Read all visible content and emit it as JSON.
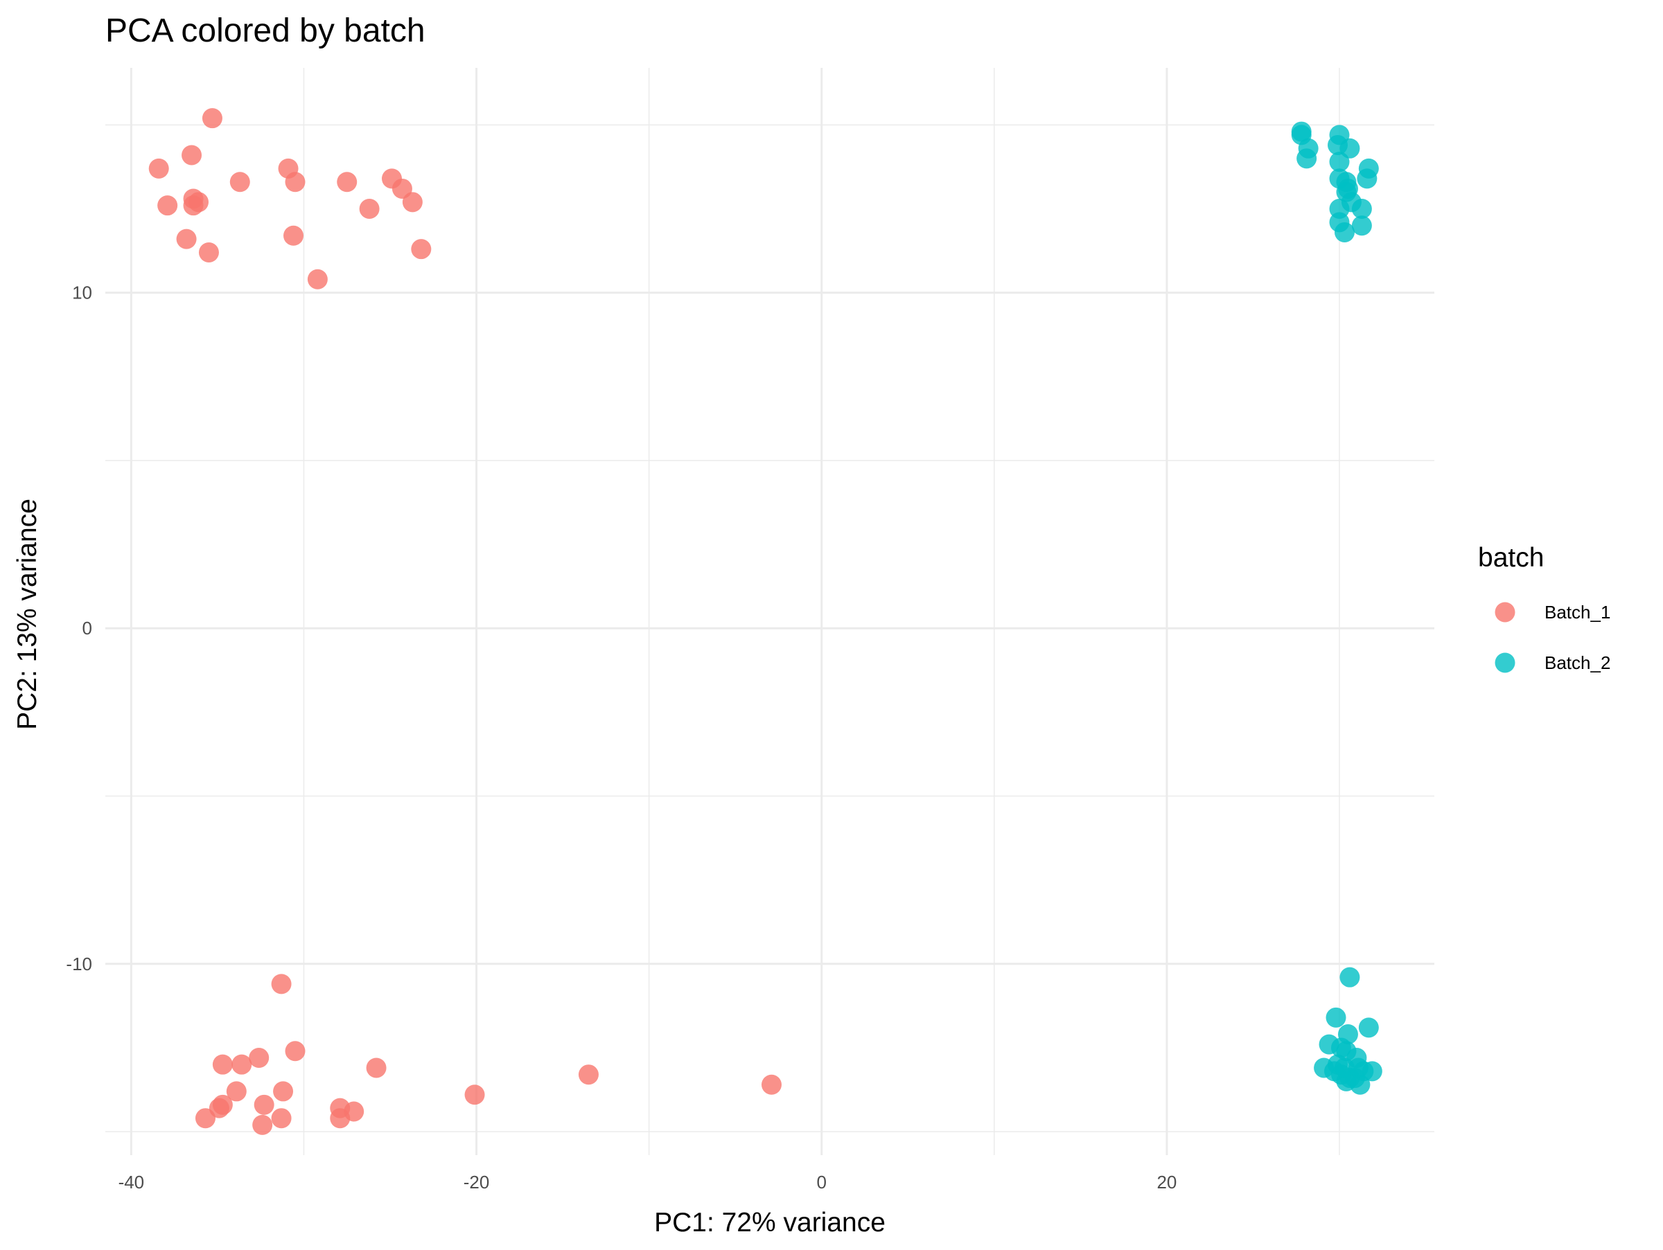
{
  "chart_data": {
    "type": "scatter",
    "title": "PCA colored by batch",
    "xlabel": "PC1: 72% variance",
    "ylabel": "PC2: 13% variance",
    "xlim": [
      -41.5,
      35.5
    ],
    "ylim": [
      -15.7,
      16.7
    ],
    "x_ticks": [
      -40,
      -20,
      0,
      20
    ],
    "x_tick_labels": [
      "-40",
      "-20",
      "0",
      "20"
    ],
    "x_minor_ticks": [
      -30,
      -10,
      10,
      30
    ],
    "y_ticks": [
      -10,
      0,
      10
    ],
    "y_tick_labels": [
      "-10",
      "0",
      "10"
    ],
    "y_minor_ticks": [
      -15,
      -5,
      5,
      15
    ],
    "grid": true,
    "legend": {
      "title": "batch",
      "position": "right"
    },
    "series": [
      {
        "name": "Batch_1",
        "color": "#F8766D",
        "points": [
          [
            -35.3,
            15.2
          ],
          [
            -36.5,
            14.1
          ],
          [
            -38.4,
            13.7
          ],
          [
            -37.9,
            12.6
          ],
          [
            -36.4,
            12.8
          ],
          [
            -36.1,
            12.7
          ],
          [
            -36.4,
            12.6
          ],
          [
            -33.7,
            13.3
          ],
          [
            -30.9,
            13.7
          ],
          [
            -30.5,
            13.3
          ],
          [
            -27.5,
            13.3
          ],
          [
            -24.9,
            13.4
          ],
          [
            -24.3,
            13.1
          ],
          [
            -23.7,
            12.7
          ],
          [
            -26.2,
            12.5
          ],
          [
            -30.6,
            11.7
          ],
          [
            -36.8,
            11.6
          ],
          [
            -35.5,
            11.2
          ],
          [
            -23.2,
            11.3
          ],
          [
            -29.2,
            10.4
          ],
          [
            -31.3,
            -10.6
          ],
          [
            -32.6,
            -12.8
          ],
          [
            -33.6,
            -13.0
          ],
          [
            -34.7,
            -13.0
          ],
          [
            -30.5,
            -12.6
          ],
          [
            -25.8,
            -13.1
          ],
          [
            -13.5,
            -13.3
          ],
          [
            -33.9,
            -13.8
          ],
          [
            -31.2,
            -13.8
          ],
          [
            -34.7,
            -14.2
          ],
          [
            -34.9,
            -14.3
          ],
          [
            -32.3,
            -14.2
          ],
          [
            -27.9,
            -14.3
          ],
          [
            -27.1,
            -14.4
          ],
          [
            -35.7,
            -14.6
          ],
          [
            -31.3,
            -14.6
          ],
          [
            -27.9,
            -14.6
          ],
          [
            -32.4,
            -14.8
          ],
          [
            -20.1,
            -13.9
          ],
          [
            -2.9,
            -13.6
          ]
        ]
      },
      {
        "name": "Batch_2",
        "color": "#00BFC4",
        "points": [
          [
            27.8,
            14.8
          ],
          [
            27.8,
            14.7
          ],
          [
            28.2,
            14.3
          ],
          [
            28.1,
            14.0
          ],
          [
            30.0,
            14.7
          ],
          [
            29.9,
            14.4
          ],
          [
            30.6,
            14.3
          ],
          [
            30.0,
            13.9
          ],
          [
            30.0,
            13.4
          ],
          [
            30.4,
            13.3
          ],
          [
            30.5,
            13.1
          ],
          [
            30.4,
            13.0
          ],
          [
            31.7,
            13.7
          ],
          [
            31.6,
            13.4
          ],
          [
            30.7,
            12.7
          ],
          [
            31.3,
            12.5
          ],
          [
            30.0,
            12.5
          ],
          [
            30.0,
            12.1
          ],
          [
            31.3,
            12.0
          ],
          [
            30.3,
            11.8
          ],
          [
            30.6,
            -10.4
          ],
          [
            29.8,
            -11.6
          ],
          [
            31.7,
            -11.9
          ],
          [
            30.5,
            -12.1
          ],
          [
            29.4,
            -12.4
          ],
          [
            30.1,
            -12.5
          ],
          [
            30.4,
            -12.6
          ],
          [
            31.0,
            -12.8
          ],
          [
            29.1,
            -13.1
          ],
          [
            29.7,
            -13.2
          ],
          [
            30.1,
            -13.3
          ],
          [
            30.6,
            -13.4
          ],
          [
            31.4,
            -13.2
          ],
          [
            31.9,
            -13.2
          ],
          [
            30.9,
            -13.4
          ],
          [
            30.4,
            -13.5
          ],
          [
            31.2,
            -13.6
          ],
          [
            29.9,
            -13.0
          ],
          [
            30.3,
            -13.1
          ],
          [
            31.1,
            -13.1
          ]
        ]
      }
    ]
  }
}
